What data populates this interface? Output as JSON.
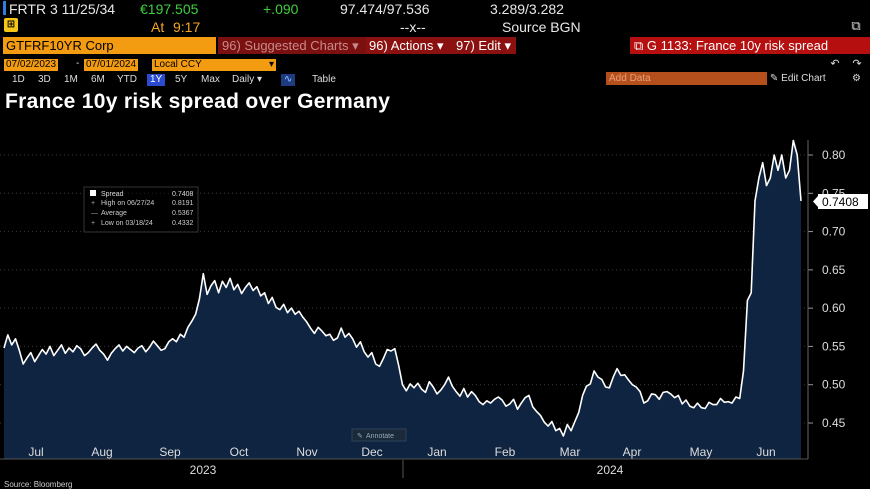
{
  "quote": {
    "security": "FRTR 3 11/25/34",
    "price": "€197.505",
    "change": "+.090",
    "bid_ask": "97.474/97.536",
    "yields": "3.289/3.282",
    "at_label": "At",
    "time": "9:17",
    "condition_code": "--x--",
    "source": "Source BGN"
  },
  "command_bar": {
    "ticker": "GTFRF10YR Corp",
    "suggested_num": "96",
    "suggested_label": "Suggested Charts",
    "actions_num": "96",
    "actions_label": "Actions",
    "edit_num": "97",
    "edit_label": "Edit",
    "chart_title_bar": "G 1133: France 10y risk spread"
  },
  "controls": {
    "start_date": "07/02/2023",
    "end_date": "07/01/2024",
    "currency": "Local CCY",
    "periods": [
      "1D",
      "3D",
      "1M",
      "6M",
      "YTD",
      "1Y",
      "5Y",
      "Max"
    ],
    "selected_period": "1Y",
    "frequency": "Daily",
    "table_label": "Table",
    "add_data_placeholder": "Add Data",
    "edit_chart_label": "Edit Chart"
  },
  "icons": {
    "copy": "copy-icon",
    "line_chart": "line-chart-icon",
    "undo": "undo-icon",
    "redo": "redo-icon",
    "gear": "gear-icon",
    "popout": "popout-icon"
  },
  "colors": {
    "accent_orange": "#f39c12",
    "menu_red": "#8b1010",
    "title_red": "#b50f0f",
    "area_fill": "#0f2440",
    "line": "#ffffff"
  },
  "chart_data": {
    "type": "area",
    "title": "France 10y risk spread over Germany",
    "series_name": "Spread",
    "last_value": 0.7408,
    "ylim": [
      0.425,
      0.82
    ],
    "yticks": [
      0.45,
      0.5,
      0.55,
      0.6,
      0.65,
      0.7,
      0.75,
      0.8
    ],
    "ytick_labels": [
      "0.45",
      "0.50",
      "0.55",
      "0.60",
      "0.65",
      "0.70",
      "0.75",
      "0.80"
    ],
    "last_value_label": "0.7408",
    "x_month_labels": [
      "Jul",
      "Aug",
      "Sep",
      "Oct",
      "Nov",
      "Dec",
      "Jan",
      "Feb",
      "Mar",
      "Apr",
      "May",
      "Jun"
    ],
    "x_year_labels": [
      "2023",
      "2024"
    ],
    "legend": {
      "spread_label": "Spread",
      "spread_value": "0.7408",
      "high_label": "High on 06/27/24",
      "high_value": "0.8191",
      "average_label": "Average",
      "average_value": "0.5367",
      "low_label": "Low on 03/18/24",
      "low_value": "0.4332"
    },
    "annotate_label": "Annotate",
    "values": [
      0.548,
      0.565,
      0.552,
      0.56,
      0.545,
      0.527,
      0.535,
      0.542,
      0.53,
      0.538,
      0.546,
      0.54,
      0.55,
      0.538,
      0.545,
      0.552,
      0.541,
      0.548,
      0.543,
      0.551,
      0.547,
      0.538,
      0.542,
      0.548,
      0.553,
      0.545,
      0.54,
      0.532,
      0.541,
      0.547,
      0.552,
      0.544,
      0.55,
      0.546,
      0.542,
      0.548,
      0.551,
      0.543,
      0.549,
      0.557,
      0.551,
      0.545,
      0.547,
      0.556,
      0.56,
      0.556,
      0.566,
      0.562,
      0.575,
      0.583,
      0.592,
      0.612,
      0.645,
      0.618,
      0.629,
      0.636,
      0.62,
      0.635,
      0.627,
      0.639,
      0.624,
      0.631,
      0.619,
      0.627,
      0.633,
      0.623,
      0.628,
      0.616,
      0.62,
      0.606,
      0.614,
      0.601,
      0.598,
      0.605,
      0.594,
      0.6,
      0.592,
      0.596,
      0.588,
      0.582,
      0.574,
      0.567,
      0.575,
      0.57,
      0.564,
      0.566,
      0.558,
      0.561,
      0.574,
      0.562,
      0.567,
      0.56,
      0.549,
      0.556,
      0.543,
      0.536,
      0.542,
      0.527,
      0.524,
      0.534,
      0.546,
      0.544,
      0.547,
      0.525,
      0.5,
      0.492,
      0.501,
      0.496,
      0.502,
      0.494,
      0.49,
      0.504,
      0.497,
      0.488,
      0.493,
      0.5,
      0.51,
      0.498,
      0.491,
      0.485,
      0.495,
      0.484,
      0.491,
      0.486,
      0.478,
      0.474,
      0.479,
      0.476,
      0.481,
      0.484,
      0.48,
      0.472,
      0.475,
      0.481,
      0.468,
      0.476,
      0.483,
      0.486,
      0.471,
      0.465,
      0.46,
      0.451,
      0.446,
      0.452,
      0.44,
      0.443,
      0.433,
      0.448,
      0.44,
      0.452,
      0.464,
      0.486,
      0.498,
      0.501,
      0.518,
      0.51,
      0.507,
      0.497,
      0.496,
      0.51,
      0.521,
      0.512,
      0.513,
      0.506,
      0.5,
      0.497,
      0.491,
      0.476,
      0.479,
      0.488,
      0.487,
      0.481,
      0.49,
      0.491,
      0.488,
      0.483,
      0.486,
      0.475,
      0.48,
      0.472,
      0.47,
      0.476,
      0.47,
      0.469,
      0.477,
      0.474,
      0.474,
      0.482,
      0.477,
      0.478,
      0.476,
      0.484,
      0.482,
      0.518,
      0.61,
      0.62,
      0.74,
      0.77,
      0.79,
      0.76,
      0.77,
      0.8,
      0.78,
      0.8,
      0.77,
      0.78,
      0.819,
      0.8,
      0.74
    ]
  },
  "footer": {
    "source": "Source: Bloomberg"
  }
}
